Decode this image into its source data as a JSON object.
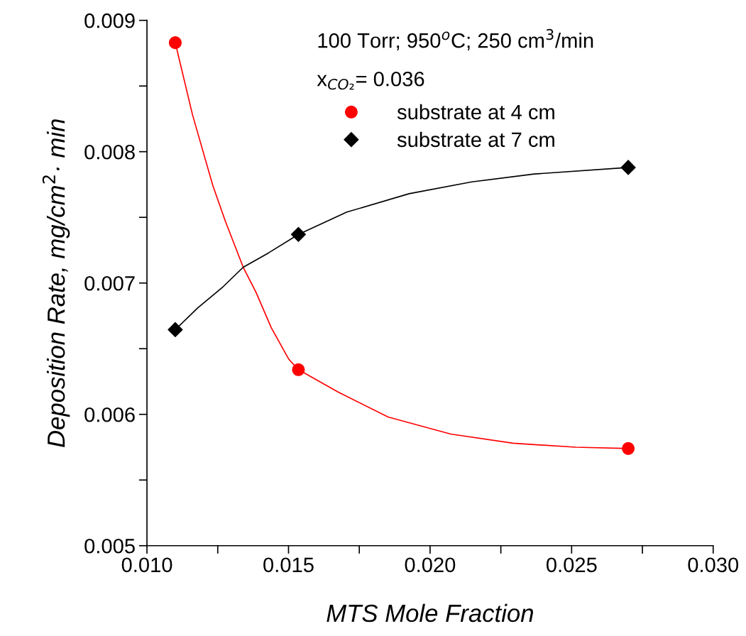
{
  "chart_data": {
    "type": "scatter",
    "xlabel": "MTS Mole Fraction",
    "ylabel": "Deposition Rate, mg/cm$^{2}$· min",
    "annotations": [
      "100 Torr; 950$^{o}$C; 250 cm$^{3}$/min",
      "x$_{CO₂}$= 0.036"
    ],
    "x": [
      0.011,
      0.01535,
      0.027
    ],
    "series": [
      {
        "name": "substrate at 4 cm",
        "color": "#ff0000",
        "marker": "circle",
        "values": [
          0.00883,
          0.00634,
          0.00574
        ]
      },
      {
        "name": "substrate at 7 cm",
        "color": "#000000",
        "marker": "diamond",
        "values": [
          0.006645,
          0.00737,
          0.00788
        ]
      },
      {
        "type": "line",
        "color": "#ff0000",
        "marker": "none",
        "x": [
          0.011,
          0.01161,
          0.01233,
          0.01277,
          0.0134,
          0.01385,
          0.01439,
          0.01501,
          0.01535,
          0.01675,
          0.01852,
          0.02073,
          0.02293,
          0.02514,
          0.027
        ],
        "values": [
          0.00883,
          0.00828,
          0.00774,
          0.00747,
          0.00712,
          0.00693,
          0.00666,
          0.00642,
          0.00634,
          0.00617,
          0.00598,
          0.00585,
          0.00578,
          0.00575,
          0.00574
        ]
      },
      {
        "type": "line",
        "color": "#000000",
        "marker": "none",
        "x": [
          0.011,
          0.01179,
          0.01268,
          0.0134,
          0.0143,
          0.01535,
          0.01706,
          0.01926,
          0.02147,
          0.02368,
          0.027
        ],
        "values": [
          0.006645,
          0.00681,
          0.00697,
          0.00712,
          0.00723,
          0.00737,
          0.00754,
          0.00768,
          0.00777,
          0.00783,
          0.00788
        ]
      }
    ],
    "xlim": [
      0.01,
      0.03
    ],
    "xticks": [
      {
        "value": 0.01,
        "label": "0.010"
      },
      {
        "value": 0.0125,
        "label": null
      },
      0.015,
      {
        "value": 0.0175,
        "label": null
      },
      {
        "value": 0.02,
        "label": "0.020"
      },
      {
        "value": 0.0225,
        "label": null
      },
      0.025,
      {
        "value": 0.0275,
        "label": null
      },
      {
        "value": 0.03,
        "label": "0.030"
      }
    ],
    "ylim": [
      0.005,
      0.009
    ],
    "yticks": [
      0.005,
      {
        "value": 0.0055,
        "label": null
      },
      0.006,
      {
        "value": 0.0065,
        "label": null
      },
      0.007,
      {
        "value": 0.0075,
        "label": null
      },
      0.008,
      {
        "value": 0.0085,
        "label": null
      },
      0.009
    ],
    "grid": false,
    "legend": "top right",
    "line_style": "solid"
  }
}
